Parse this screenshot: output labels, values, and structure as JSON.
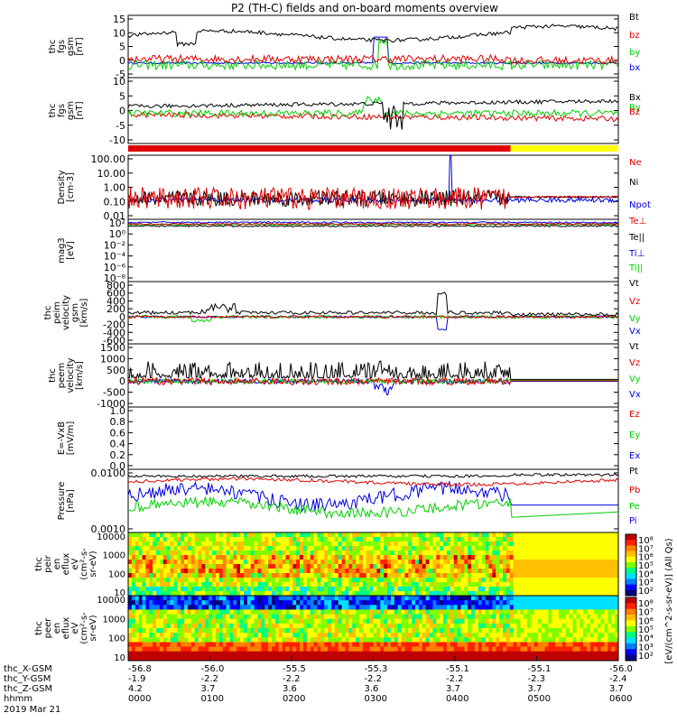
{
  "title": "P2 (TH-C) fields and on-board moments overview",
  "colors": {
    "black": "#000000",
    "red": "#e00000",
    "green": "#00d000",
    "blue": "#0000e0",
    "yellow": "#ffff00"
  },
  "status_bar": {
    "red_until_fraction": 0.78
  },
  "chart_data": [
    {
      "type": "line",
      "id": "fgs-gsm",
      "ylabel": [
        "thc",
        "fgs",
        "gsm",
        "[nT]"
      ],
      "yticks": [
        "15",
        "10",
        "5",
        "0",
        "-5"
      ],
      "ylim": [
        -5,
        15
      ],
      "series": [
        {
          "name": "Bt",
          "color": "#000000"
        },
        {
          "name": "bz",
          "color": "#e00000"
        },
        {
          "name": "by",
          "color": "#00d000"
        },
        {
          "name": "bx",
          "color": "#0000e0"
        }
      ]
    },
    {
      "type": "line",
      "id": "fgs-gsm-dsl",
      "ylabel": [
        "thc",
        "fgs",
        "gsm",
        "[nT]"
      ],
      "yticks": [
        "10",
        "5",
        "0",
        "-5",
        "-10"
      ],
      "ylim": [
        -12,
        12
      ],
      "series": [
        {
          "name": "Bx",
          "color": "#000000"
        },
        {
          "name": "By",
          "color": "#00d000"
        },
        {
          "name": "Bz",
          "color": "#e00000"
        }
      ]
    },
    {
      "type": "line",
      "id": "density",
      "ylabel": [
        "Density",
        "[cm-3]"
      ],
      "yticks": [
        "100.00",
        "10.00",
        "1.00",
        "0.10",
        "0.01"
      ],
      "scale": "log",
      "ylim": [
        0.01,
        100
      ],
      "series": [
        {
          "name": "Ne",
          "color": "#e00000"
        },
        {
          "name": "Ni",
          "color": "#000000"
        },
        {
          "name": "Npot",
          "color": "#0000e0"
        }
      ]
    },
    {
      "type": "line",
      "id": "temperature",
      "ylabel": [
        "mag3",
        "[eV]"
      ],
      "yticks": [
        "10²",
        "10⁰",
        "10⁻²",
        "10⁻⁴",
        "10⁻⁶",
        "10⁻⁸"
      ],
      "scale": "log",
      "series": [
        {
          "name": "Te⊥",
          "color": "#e00000"
        },
        {
          "name": "Te||",
          "color": "#000000"
        },
        {
          "name": "Ti⊥",
          "color": "#0000e0"
        },
        {
          "name": "Ti||",
          "color": "#00d000"
        }
      ]
    },
    {
      "type": "line",
      "id": "peim-velocity",
      "ylabel": [
        "thc",
        "peim",
        "velocity",
        "gsm",
        "[km/s]"
      ],
      "yticks": [
        "800",
        "600",
        "400",
        "200",
        "0",
        "-200",
        "-400",
        "-600"
      ],
      "ylim": [
        -650,
        850
      ],
      "series": [
        {
          "name": "Vt",
          "color": "#000000"
        },
        {
          "name": "Vz",
          "color": "#e00000"
        },
        {
          "name": "Vy",
          "color": "#00d000"
        },
        {
          "name": "Vx",
          "color": "#0000e0"
        }
      ]
    },
    {
      "type": "line",
      "id": "peem-velocity",
      "ylabel": [
        "thc",
        "peem",
        "velocity",
        "[km/s]"
      ],
      "yticks": [
        "1500",
        "1000",
        "500",
        "0",
        "-500",
        "-1000"
      ],
      "ylim": [
        -1100,
        1600
      ],
      "series": [
        {
          "name": "Vt",
          "color": "#000000"
        },
        {
          "name": "Vz",
          "color": "#e00000"
        },
        {
          "name": "Vy",
          "color": "#00d000"
        },
        {
          "name": "Vx",
          "color": "#0000e0"
        }
      ]
    },
    {
      "type": "line",
      "id": "efield",
      "ylabel": [
        "E=-VxB",
        "[mV/m]"
      ],
      "yticks": [
        "1.0",
        "0.8",
        "0.6",
        "0.4",
        "0.2",
        "0.0"
      ],
      "ylim": [
        0,
        1
      ],
      "series": [
        {
          "name": "Ez",
          "color": "#e00000"
        },
        {
          "name": "Ey",
          "color": "#00d000"
        },
        {
          "name": "Ex",
          "color": "#0000e0"
        }
      ]
    },
    {
      "type": "line",
      "id": "pressure",
      "ylabel": [
        "Pressure",
        "[nPa]"
      ],
      "yticks": [
        "0.0100",
        "0.0010"
      ],
      "scale": "log",
      "series": [
        {
          "name": "Pt",
          "color": "#000000"
        },
        {
          "name": "Pb",
          "color": "#e00000"
        },
        {
          "name": "Pe",
          "color": "#00d000"
        },
        {
          "name": "Pi",
          "color": "#0000e0"
        }
      ]
    },
    {
      "type": "heatmap",
      "id": "peir-spec",
      "ylabel": [
        "thc",
        "peir",
        "en",
        "eflux",
        "eV",
        "(cm²-s-",
        "sr-eV)"
      ],
      "yticks": [
        "10000",
        "1000",
        "100",
        "10"
      ],
      "scale": "log"
    },
    {
      "type": "heatmap",
      "id": "peer-spec",
      "ylabel": [
        "thc",
        "peer",
        "en",
        "eflux",
        "eV",
        "(cm²-s-",
        "sr-eV)"
      ],
      "yticks": [
        "10000",
        "1000",
        "100",
        "10"
      ],
      "scale": "log"
    }
  ],
  "colorbar": {
    "label": "[eV/(cm^2-s-sr-eV)] (All Qs)",
    "upper_ticks": [
      "10⁸",
      "10⁷",
      "10⁶",
      "10⁵",
      "10⁴",
      "10³",
      "10²"
    ],
    "lower_ticks": [
      "10⁸",
      "10⁷",
      "10⁶",
      "10⁵",
      "10⁴",
      "10³",
      "10²"
    ]
  },
  "xaxis": {
    "row_labels": [
      "thc_X-GSM",
      "thc_Y-GSM",
      "thc_Z-GSM",
      "hhmm",
      "2019 Mar 21"
    ],
    "ticks": [
      {
        "x": "-56.8",
        "y": "-1.9",
        "z": "4.2",
        "t": "0000"
      },
      {
        "x": "-56.0",
        "y": "-2.2",
        "z": "3.7",
        "t": "0100"
      },
      {
        "x": "-55.5",
        "y": "-2.2",
        "z": "3.6",
        "t": "0200"
      },
      {
        "x": "-55.3",
        "y": "-2.2",
        "z": "3.6",
        "t": "0300"
      },
      {
        "x": "-55.1",
        "y": "-2.2",
        "z": "3.7",
        "t": "0400"
      },
      {
        "x": "-55.1",
        "y": "-2.3",
        "z": "3.7",
        "t": "0500"
      },
      {
        "x": "-56.0",
        "y": "-2.4",
        "z": "3.7",
        "t": "0600"
      }
    ]
  }
}
